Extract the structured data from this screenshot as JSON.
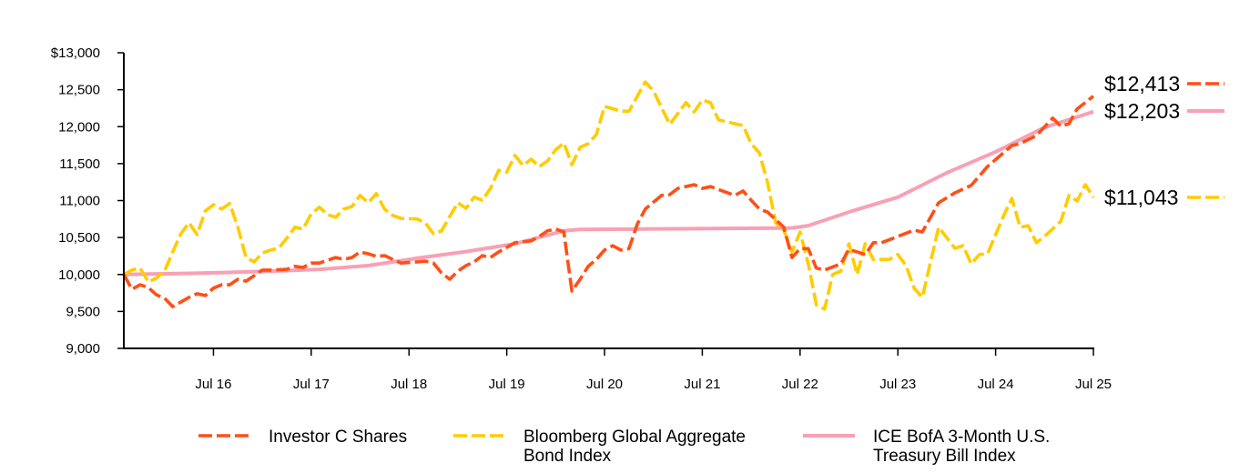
{
  "chart_data": {
    "type": "line",
    "title": "",
    "xlabel": "",
    "ylabel": "",
    "ylim": [
      9000,
      13000
    ],
    "y_ticks": [
      "$13,000",
      "12,500",
      "12,000",
      "11,500",
      "11,000",
      "10,500",
      "10,000",
      "9,500",
      "9,000"
    ],
    "y_tick_values": [
      13000,
      12500,
      12000,
      11500,
      11000,
      10500,
      10000,
      9500,
      9000
    ],
    "x_range": [
      "2015-08",
      "2025-07"
    ],
    "x_ticks": [
      "Jul 16",
      "Jul 17",
      "Jul 18",
      "Jul 19",
      "Jul 20",
      "Jul 21",
      "Jul 22",
      "Jul 23",
      "Jul 24",
      "Jul 25"
    ],
    "x_tick_dates": [
      "2016-07",
      "2017-07",
      "2018-07",
      "2019-07",
      "2020-07",
      "2021-07",
      "2022-07",
      "2023-07",
      "2024-07",
      "2025-07"
    ],
    "grid": false,
    "legend_position": "bottom",
    "series": [
      {
        "name": "Investor C Shares",
        "legend_lines": [
          "Investor C Shares"
        ],
        "color": "#FF4F17",
        "style": "dashed",
        "end_label": "$12,413",
        "points": [
          [
            "2015-08",
            10000
          ],
          [
            "2015-09",
            9800
          ],
          [
            "2015-10",
            9860
          ],
          [
            "2015-11",
            9825
          ],
          [
            "2015-12",
            9725
          ],
          [
            "2016-01",
            9680
          ],
          [
            "2016-02",
            9565
          ],
          [
            "2016-04",
            9690
          ],
          [
            "2016-05",
            9740
          ],
          [
            "2016-06",
            9715
          ],
          [
            "2016-07",
            9815
          ],
          [
            "2016-08",
            9860
          ],
          [
            "2016-09",
            9860
          ],
          [
            "2016-10",
            9935
          ],
          [
            "2016-11",
            9910
          ],
          [
            "2016-12",
            9985
          ],
          [
            "2017-01",
            10060
          ],
          [
            "2017-02",
            10060
          ],
          [
            "2017-04",
            10070
          ],
          [
            "2017-05",
            10110
          ],
          [
            "2017-06",
            10095
          ],
          [
            "2017-07",
            10155
          ],
          [
            "2017-08",
            10155
          ],
          [
            "2017-10",
            10230
          ],
          [
            "2017-11",
            10205
          ],
          [
            "2017-12",
            10230
          ],
          [
            "2018-01",
            10305
          ],
          [
            "2018-02",
            10280
          ],
          [
            "2018-03",
            10245
          ],
          [
            "2018-04",
            10255
          ],
          [
            "2018-05",
            10205
          ],
          [
            "2018-06",
            10155
          ],
          [
            "2018-08",
            10170
          ],
          [
            "2018-09",
            10180
          ],
          [
            "2018-10",
            10155
          ],
          [
            "2018-11",
            10020
          ],
          [
            "2018-12",
            9935
          ],
          [
            "2019-01",
            10045
          ],
          [
            "2019-02",
            10120
          ],
          [
            "2019-03",
            10170
          ],
          [
            "2019-04",
            10255
          ],
          [
            "2019-05",
            10230
          ],
          [
            "2019-06",
            10305
          ],
          [
            "2019-07",
            10365
          ],
          [
            "2019-08",
            10430
          ],
          [
            "2019-10",
            10455
          ],
          [
            "2019-11",
            10515
          ],
          [
            "2019-12",
            10590
          ],
          [
            "2020-01",
            10615
          ],
          [
            "2020-02",
            10575
          ],
          [
            "2020-03",
            9775
          ],
          [
            "2020-04",
            9935
          ],
          [
            "2020-05",
            10110
          ],
          [
            "2020-06",
            10205
          ],
          [
            "2020-07",
            10330
          ],
          [
            "2020-08",
            10390
          ],
          [
            "2020-09",
            10330
          ],
          [
            "2020-10",
            10350
          ],
          [
            "2020-11",
            10675
          ],
          [
            "2020-12",
            10885
          ],
          [
            "2021-02",
            11070
          ],
          [
            "2021-03",
            11080
          ],
          [
            "2021-04",
            11165
          ],
          [
            "2021-06",
            11215
          ],
          [
            "2021-07",
            11165
          ],
          [
            "2021-08",
            11190
          ],
          [
            "2021-11",
            11070
          ],
          [
            "2021-12",
            11130
          ],
          [
            "2022-01",
            11005
          ],
          [
            "2022-02",
            10885
          ],
          [
            "2022-03",
            10845
          ],
          [
            "2022-05",
            10640
          ],
          [
            "2022-06",
            10230
          ],
          [
            "2022-07",
            10350
          ],
          [
            "2022-08",
            10350
          ],
          [
            "2022-09",
            10085
          ],
          [
            "2022-10",
            10060
          ],
          [
            "2022-12",
            10145
          ],
          [
            "2023-01",
            10340
          ],
          [
            "2023-03",
            10270
          ],
          [
            "2023-04",
            10430
          ],
          [
            "2023-05",
            10430
          ],
          [
            "2023-09",
            10600
          ],
          [
            "2023-10",
            10575
          ],
          [
            "2023-12",
            10970
          ],
          [
            "2024-02",
            11105
          ],
          [
            "2024-04",
            11205
          ],
          [
            "2024-06",
            11460
          ],
          [
            "2024-09",
            11745
          ],
          [
            "2024-10",
            11770
          ],
          [
            "2024-12",
            11880
          ],
          [
            "2025-02",
            12115
          ],
          [
            "2025-03",
            12005
          ],
          [
            "2025-04",
            12040
          ],
          [
            "2025-05",
            12240
          ],
          [
            "2025-07",
            12413
          ]
        ]
      },
      {
        "name": "Bloomberg Global Aggregate Bond Index",
        "legend_lines": [
          "Bloomberg Global Aggregate",
          "Bond Index"
        ],
        "color": "#FFCC00",
        "style": "dashed",
        "end_label": "$11,043",
        "points": [
          [
            "2015-08",
            10000
          ],
          [
            "2015-09",
            10060
          ],
          [
            "2015-10",
            10085
          ],
          [
            "2015-11",
            9900
          ],
          [
            "2015-12",
            9950
          ],
          [
            "2016-01",
            10045
          ],
          [
            "2016-02",
            10305
          ],
          [
            "2016-03",
            10550
          ],
          [
            "2016-04",
            10700
          ],
          [
            "2016-05",
            10540
          ],
          [
            "2016-06",
            10860
          ],
          [
            "2016-07",
            10945
          ],
          [
            "2016-08",
            10885
          ],
          [
            "2016-09",
            10960
          ],
          [
            "2016-10",
            10640
          ],
          [
            "2016-11",
            10230
          ],
          [
            "2016-12",
            10170
          ],
          [
            "2017-01",
            10290
          ],
          [
            "2017-02",
            10330
          ],
          [
            "2017-03",
            10355
          ],
          [
            "2017-04",
            10490
          ],
          [
            "2017-05",
            10640
          ],
          [
            "2017-06",
            10615
          ],
          [
            "2017-07",
            10820
          ],
          [
            "2017-08",
            10910
          ],
          [
            "2017-09",
            10810
          ],
          [
            "2017-10",
            10775
          ],
          [
            "2017-11",
            10885
          ],
          [
            "2017-12",
            10920
          ],
          [
            "2018-01",
            11070
          ],
          [
            "2018-02",
            10970
          ],
          [
            "2018-03",
            11095
          ],
          [
            "2018-04",
            10885
          ],
          [
            "2018-05",
            10800
          ],
          [
            "2018-06",
            10760
          ],
          [
            "2018-08",
            10750
          ],
          [
            "2018-09",
            10700
          ],
          [
            "2018-10",
            10550
          ],
          [
            "2018-11",
            10590
          ],
          [
            "2018-12",
            10785
          ],
          [
            "2019-01",
            10970
          ],
          [
            "2019-02",
            10895
          ],
          [
            "2019-03",
            11045
          ],
          [
            "2019-04",
            11005
          ],
          [
            "2019-05",
            11165
          ],
          [
            "2019-06",
            11410
          ],
          [
            "2019-07",
            11385
          ],
          [
            "2019-08",
            11610
          ],
          [
            "2019-09",
            11475
          ],
          [
            "2019-10",
            11560
          ],
          [
            "2019-11",
            11460
          ],
          [
            "2019-12",
            11535
          ],
          [
            "2020-01",
            11685
          ],
          [
            "2020-02",
            11780
          ],
          [
            "2020-03",
            11485
          ],
          [
            "2020-04",
            11720
          ],
          [
            "2020-05",
            11770
          ],
          [
            "2020-06",
            11895
          ],
          [
            "2020-07",
            12275
          ],
          [
            "2020-09",
            12210
          ],
          [
            "2020-10",
            12210
          ],
          [
            "2020-12",
            12605
          ],
          [
            "2021-01",
            12485
          ],
          [
            "2021-03",
            12030
          ],
          [
            "2021-05",
            12325
          ],
          [
            "2021-06",
            12200
          ],
          [
            "2021-07",
            12360
          ],
          [
            "2021-08",
            12325
          ],
          [
            "2021-09",
            12090
          ],
          [
            "2021-12",
            12015
          ],
          [
            "2022-01",
            11770
          ],
          [
            "2022-02",
            11645
          ],
          [
            "2022-03",
            11250
          ],
          [
            "2022-04",
            10700
          ],
          [
            "2022-05",
            10600
          ],
          [
            "2022-06",
            10305
          ],
          [
            "2022-07",
            10575
          ],
          [
            "2022-08",
            10145
          ],
          [
            "2022-09",
            9590
          ],
          [
            "2022-10",
            9530
          ],
          [
            "2022-11",
            10000
          ],
          [
            "2022-12",
            10045
          ],
          [
            "2023-01",
            10415
          ],
          [
            "2023-02",
            10000
          ],
          [
            "2023-03",
            10415
          ],
          [
            "2023-04",
            10200
          ],
          [
            "2023-06",
            10205
          ],
          [
            "2023-07",
            10270
          ],
          [
            "2023-08",
            10120
          ],
          [
            "2023-09",
            9815
          ],
          [
            "2023-10",
            9690
          ],
          [
            "2023-12",
            10640
          ],
          [
            "2024-02",
            10355
          ],
          [
            "2024-03",
            10390
          ],
          [
            "2024-04",
            10145
          ],
          [
            "2024-05",
            10270
          ],
          [
            "2024-06",
            10280
          ],
          [
            "2024-08",
            10800
          ],
          [
            "2024-09",
            11030
          ],
          [
            "2024-10",
            10640
          ],
          [
            "2024-11",
            10660
          ],
          [
            "2024-12",
            10430
          ],
          [
            "2025-01",
            10515
          ],
          [
            "2025-03",
            10720
          ],
          [
            "2025-04",
            11070
          ],
          [
            "2025-05",
            10995
          ],
          [
            "2025-06",
            11215
          ],
          [
            "2025-07",
            11043
          ]
        ]
      },
      {
        "name": "ICE BofA 3-Month U.S. Treasury Bill Index",
        "legend_lines": [
          "ICE BofA 3-Month U.S.",
          "Treasury Bill Index"
        ],
        "color": "#F8A0B4",
        "style": "solid",
        "end_label": "$12,203",
        "points": [
          [
            "2015-08",
            10000
          ],
          [
            "2016-02",
            10010
          ],
          [
            "2016-08",
            10025
          ],
          [
            "2017-02",
            10045
          ],
          [
            "2017-08",
            10070
          ],
          [
            "2018-02",
            10120
          ],
          [
            "2018-08",
            10220
          ],
          [
            "2019-02",
            10310
          ],
          [
            "2019-08",
            10415
          ],
          [
            "2020-02",
            10590
          ],
          [
            "2020-04",
            10610
          ],
          [
            "2021-06",
            10620
          ],
          [
            "2022-06",
            10630
          ],
          [
            "2022-08",
            10660
          ],
          [
            "2023-01",
            10845
          ],
          [
            "2023-07",
            11045
          ],
          [
            "2024-01",
            11375
          ],
          [
            "2024-07",
            11660
          ],
          [
            "2025-01",
            11990
          ],
          [
            "2025-07",
            12203
          ]
        ]
      }
    ]
  }
}
